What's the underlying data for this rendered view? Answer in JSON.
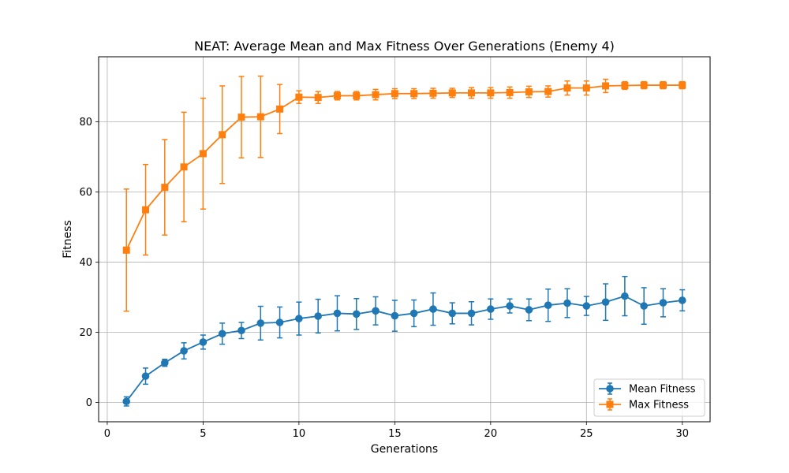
{
  "chart_data": {
    "type": "line",
    "title": "NEAT: Average Mean and Max Fitness Over Generations (Enemy 4)",
    "xlabel": "Generations",
    "ylabel": "Fitness",
    "xlim": [
      -0.45,
      31.45
    ],
    "ylim": [
      -5.5,
      98.5
    ],
    "xticks": [
      0,
      5,
      10,
      15,
      20,
      25,
      30
    ],
    "yticks": [
      0,
      20,
      40,
      60,
      80
    ],
    "grid": true,
    "legend_position": "bottom-right",
    "x": [
      1,
      2,
      3,
      4,
      5,
      6,
      7,
      8,
      9,
      10,
      11,
      12,
      13,
      14,
      15,
      16,
      17,
      18,
      19,
      20,
      21,
      22,
      23,
      24,
      25,
      26,
      27,
      28,
      29,
      30
    ],
    "series": [
      {
        "name": "Mean Fitness",
        "marker": "circle",
        "color": "#1f77b4",
        "values": [
          0.3,
          7.5,
          11.3,
          14.7,
          17.2,
          19.6,
          20.5,
          22.6,
          22.8,
          23.9,
          24.6,
          25.4,
          25.2,
          26.1,
          24.7,
          25.4,
          26.6,
          25.4,
          25.4,
          26.6,
          27.5,
          26.4,
          27.7,
          28.3,
          27.5,
          28.6,
          30.3,
          27.5,
          28.4,
          29.1
        ],
        "errors": [
          1.3,
          2.3,
          1.0,
          2.3,
          2.0,
          3.0,
          2.3,
          4.8,
          4.4,
          4.7,
          4.8,
          5.0,
          4.4,
          4.0,
          4.4,
          3.8,
          4.6,
          3.0,
          3.3,
          2.9,
          2.0,
          3.1,
          4.6,
          4.1,
          2.7,
          5.2,
          5.6,
          5.2,
          4.0,
          3.0
        ]
      },
      {
        "name": "Max Fitness",
        "marker": "square",
        "color": "#ff7f0e",
        "values": [
          43.4,
          54.9,
          61.3,
          67.1,
          70.9,
          76.3,
          81.3,
          81.4,
          83.6,
          87.0,
          86.9,
          87.4,
          87.4,
          87.7,
          88.0,
          88.0,
          88.1,
          88.2,
          88.2,
          88.2,
          88.3,
          88.5,
          88.6,
          89.6,
          89.6,
          90.2,
          90.3,
          90.4,
          90.4,
          90.4
        ],
        "errors": [
          17.4,
          12.9,
          13.6,
          15.6,
          15.8,
          13.9,
          11.6,
          11.6,
          7.0,
          1.8,
          1.7,
          1.2,
          1.2,
          1.5,
          1.4,
          1.4,
          1.4,
          1.3,
          1.5,
          1.5,
          1.6,
          1.6,
          1.6,
          2.0,
          2.0,
          1.9,
          1.1,
          1.0,
          1.0,
          1.0
        ]
      }
    ]
  }
}
